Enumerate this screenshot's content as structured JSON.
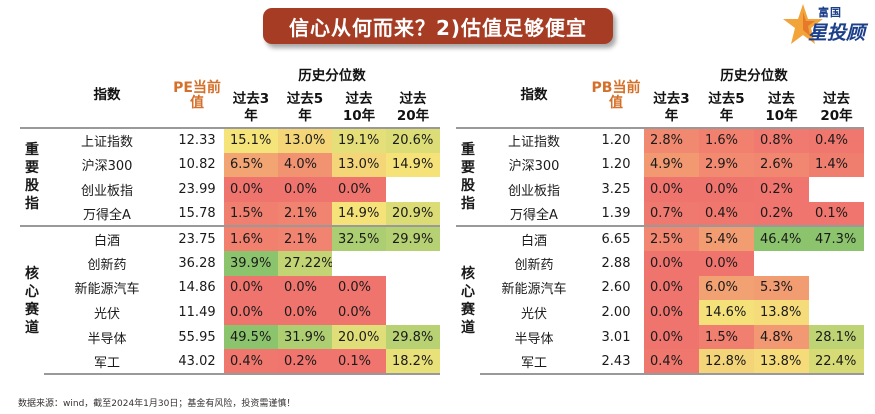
{
  "title": "信心从何而来？2)估值足够便宜",
  "logo": {
    "top": "富国",
    "main": "星投顾"
  },
  "source": "数据来源：wind，截至2024年1月30日；基金有风险，投资需谨慎！",
  "colors": {
    "banner": "#a63c24",
    "red": "#f07a74",
    "yellow": "#f5e37a",
    "green": "#8cc46e"
  },
  "left": {
    "col_index": "指数",
    "col_value": "PE当前值",
    "col_hist": "历史分位数",
    "periods": [
      "过去3年",
      "过去5年",
      "过去10年",
      "过去20年"
    ],
    "groups": [
      {
        "label": "重要股指",
        "rows": [
          {
            "name": "上证指数",
            "value": "12.33",
            "pcts": [
              "15.1%",
              "13.0%",
              "19.1%",
              "20.6%"
            ]
          },
          {
            "name": "沪深300",
            "value": "10.82",
            "pcts": [
              "6.5%",
              "4.0%",
              "13.0%",
              "14.9%"
            ]
          },
          {
            "name": "创业板指",
            "value": "23.99",
            "pcts": [
              "0.0%",
              "0.0%",
              "0.0%",
              ""
            ]
          },
          {
            "name": "万得全A",
            "value": "15.78",
            "pcts": [
              "1.5%",
              "2.1%",
              "14.9%",
              "20.9%"
            ]
          }
        ]
      },
      {
        "label": "核心赛道",
        "rows": [
          {
            "name": "白酒",
            "value": "23.75",
            "pcts": [
              "1.6%",
              "2.1%",
              "32.5%",
              "29.9%"
            ]
          },
          {
            "name": "创新药",
            "value": "36.28",
            "pcts": [
              "39.9%",
              "27.22%",
              "",
              ""
            ]
          },
          {
            "name": "新能源汽车",
            "value": "14.86",
            "pcts": [
              "0.0%",
              "0.0%",
              "0.0%",
              ""
            ]
          },
          {
            "name": "光伏",
            "value": "11.49",
            "pcts": [
              "0.0%",
              "0.0%",
              "0.0%",
              ""
            ]
          },
          {
            "name": "半导体",
            "value": "55.95",
            "pcts": [
              "49.5%",
              "31.9%",
              "20.0%",
              "29.8%"
            ]
          },
          {
            "name": "军工",
            "value": "43.02",
            "pcts": [
              "0.4%",
              "0.2%",
              "0.1%",
              "18.2%"
            ]
          }
        ]
      }
    ]
  },
  "right": {
    "col_index": "指数",
    "col_value": "PB当前值",
    "col_hist": "历史分位数",
    "periods": [
      "过去3年",
      "过去5年",
      "过去10年",
      "过去20年"
    ],
    "groups": [
      {
        "label": "重要股指",
        "rows": [
          {
            "name": "上证指数",
            "value": "1.20",
            "pcts": [
              "2.8%",
              "1.6%",
              "0.8%",
              "0.4%"
            ]
          },
          {
            "name": "沪深300",
            "value": "1.20",
            "pcts": [
              "4.9%",
              "2.9%",
              "2.6%",
              "1.4%"
            ]
          },
          {
            "name": "创业板指",
            "value": "3.25",
            "pcts": [
              "0.0%",
              "0.0%",
              "0.2%",
              ""
            ]
          },
          {
            "name": "万得全A",
            "value": "1.39",
            "pcts": [
              "0.7%",
              "0.4%",
              "0.2%",
              "0.1%"
            ]
          }
        ]
      },
      {
        "label": "核心赛道",
        "rows": [
          {
            "name": "白酒",
            "value": "6.65",
            "pcts": [
              "2.5%",
              "5.4%",
              "46.4%",
              "47.3%"
            ]
          },
          {
            "name": "创新药",
            "value": "2.88",
            "pcts": [
              "0.0%",
              "0.0%",
              "",
              ""
            ]
          },
          {
            "name": "新能源汽车",
            "value": "2.60",
            "pcts": [
              "0.0%",
              "6.0%",
              "5.3%",
              ""
            ]
          },
          {
            "name": "光伏",
            "value": "2.00",
            "pcts": [
              "0.0%",
              "14.6%",
              "13.8%",
              ""
            ]
          },
          {
            "name": "半导体",
            "value": "3.01",
            "pcts": [
              "0.0%",
              "1.5%",
              "4.8%",
              "28.1%"
            ]
          },
          {
            "name": "军工",
            "value": "2.43",
            "pcts": [
              "0.4%",
              "12.8%",
              "13.8%",
              "22.4%"
            ]
          }
        ]
      }
    ]
  }
}
